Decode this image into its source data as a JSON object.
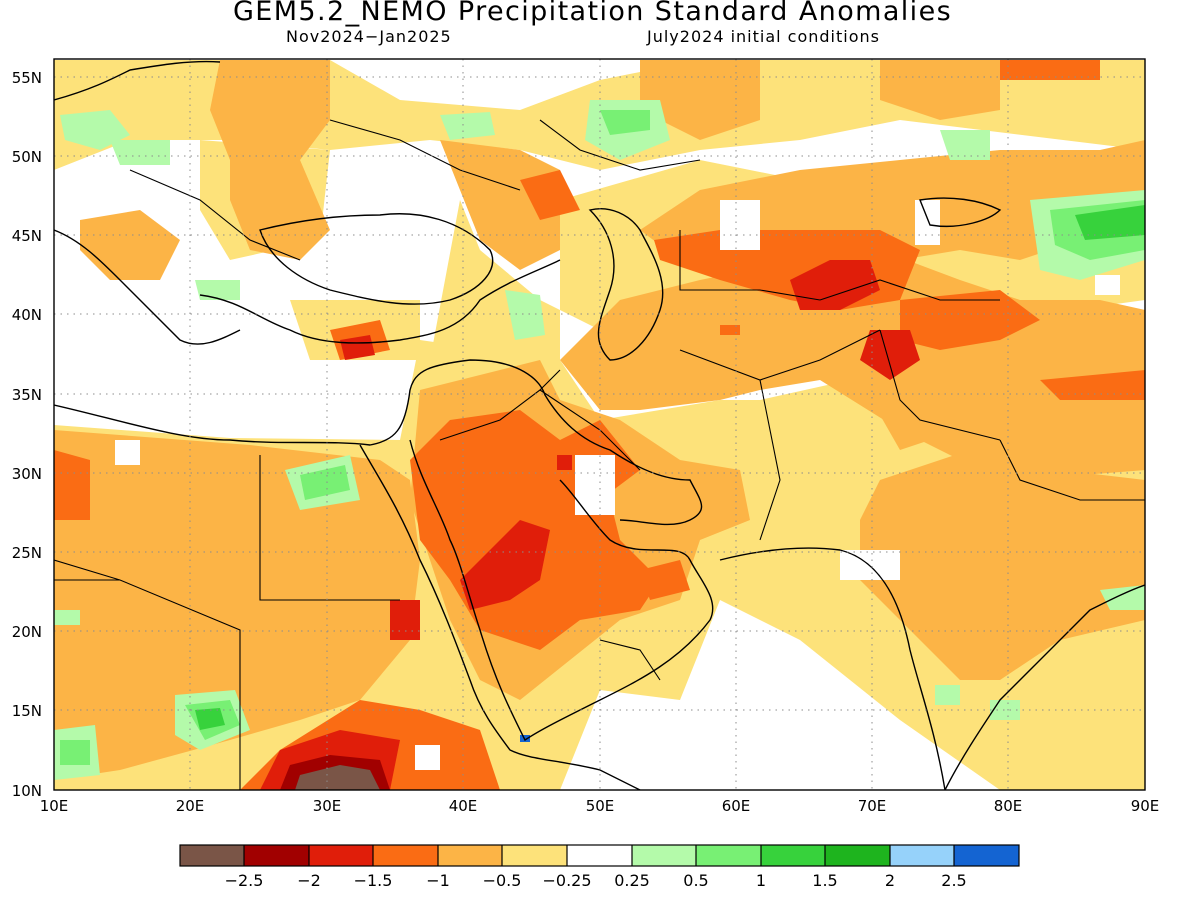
{
  "title": "GEM5.2_NEMO Precipitation Standard Anomalies",
  "period": "Nov2024−Jan2025",
  "init": "July2024 initial conditions",
  "lat_ticks": [
    "10N",
    "15N",
    "20N",
    "25N",
    "30N",
    "35N",
    "40N",
    "45N",
    "50N",
    "55N"
  ],
  "lon_ticks": [
    "10E",
    "20E",
    "30E",
    "40E",
    "50E",
    "60E",
    "70E",
    "80E",
    "90E"
  ],
  "colorbar": {
    "colors": [
      "#7a5547",
      "#a10000",
      "#e01e0a",
      "#fa6c14",
      "#fcb446",
      "#fde27a",
      "#ffffff",
      "#b4faaa",
      "#78f074",
      "#37d23c",
      "#1eb41e",
      "#96d2fa",
      "#1464d2"
    ],
    "labels": [
      "−2.5",
      "−2",
      "−1.5",
      "−1",
      "−0.5",
      "−0.25",
      "0.25",
      "0.5",
      "1",
      "1.5",
      "2",
      "2.5"
    ]
  },
  "map_extent": {
    "lon": [
      10,
      90
    ],
    "lat": [
      10,
      56
    ]
  }
}
